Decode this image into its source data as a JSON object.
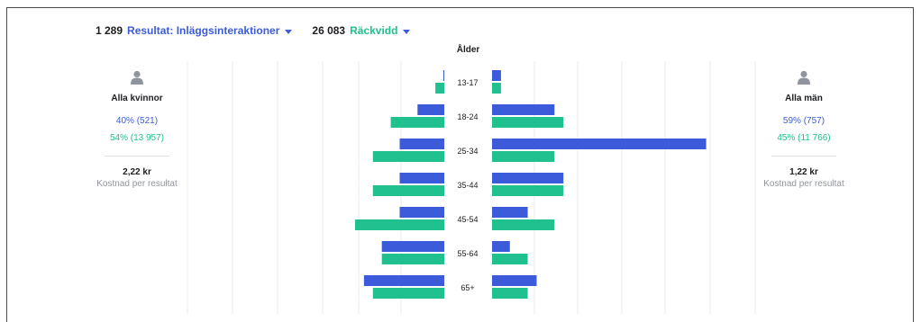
{
  "header": {
    "metric1": {
      "value": "1 289",
      "label": "Resultat: Inläggsinteraktioner"
    },
    "metric2": {
      "value": "26 083",
      "label": "Räckvidd"
    }
  },
  "colors": {
    "results": "#3b5bdb",
    "reach": "#20c08f",
    "grid": "#e9ebee",
    "text": "#1c1e21",
    "muted": "#90949c"
  },
  "left_panel": {
    "title": "Alla kvinnor",
    "results_pct": "40% (521)",
    "reach_pct": "54% (13 957)",
    "cost": "2,22 kr",
    "cost_label": "Kostnad per resultat"
  },
  "right_panel": {
    "title": "Alla män",
    "results_pct": "59% (757)",
    "reach_pct": "45% (11 766)",
    "cost": "1,22 kr",
    "cost_label": "Kostnad per resultat"
  },
  "chart_data": {
    "type": "bar",
    "title": "Ålder",
    "categories": [
      "13-17",
      "18-24",
      "25-34",
      "35-44",
      "45-54",
      "55-64",
      "65+"
    ],
    "women": {
      "results": [
        0.1,
        3,
        5,
        5,
        5,
        7,
        9
      ],
      "reach": [
        1,
        6,
        8,
        8,
        10,
        7,
        8
      ]
    },
    "men": {
      "results": [
        1,
        7,
        24,
        8,
        4,
        2,
        5
      ],
      "reach": [
        1,
        8,
        7,
        8,
        7,
        4,
        4
      ]
    },
    "grid": true
  }
}
